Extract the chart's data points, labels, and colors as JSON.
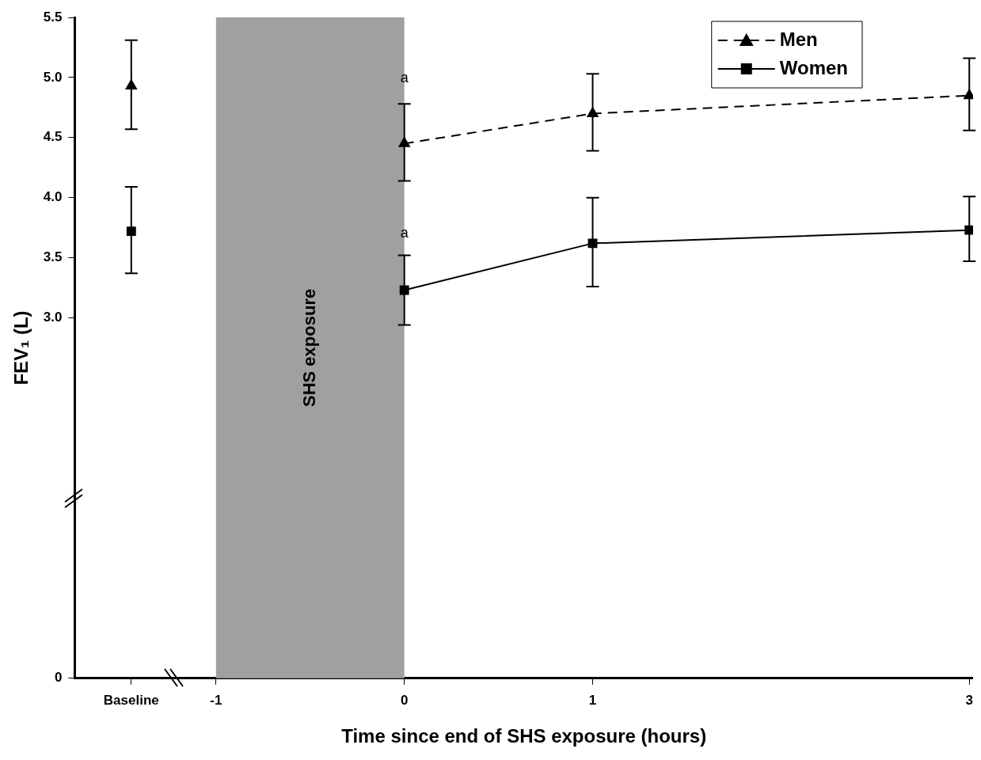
{
  "chart_data": {
    "type": "line",
    "xlabel": "Time since end of SHS exposure (hours)",
    "ylabel": "FEV₁ (L)",
    "xlim": [
      -1.75,
      3.02
    ],
    "xticks": [
      {
        "value": -1.45,
        "label": "Baseline"
      },
      -1,
      0,
      1,
      3
    ],
    "ylim": [
      0,
      5.5
    ],
    "yticks": [
      0,
      {
        "value": 3,
        "label": "3.0"
      },
      {
        "value": 3.5,
        "label": "3.5"
      },
      {
        "value": 4,
        "label": "4.0"
      },
      {
        "value": 4.5,
        "label": "4.5"
      },
      {
        "value": 5,
        "label": "5.0"
      },
      {
        "value": 5.5,
        "label": "5.5"
      }
    ],
    "grid": false,
    "legend": "top right",
    "bands": [
      {
        "axis": "x",
        "from": -1,
        "to": 0,
        "label": "SHS exposure",
        "color": "#a0a0a0"
      }
    ],
    "annotations": [
      {
        "text": "a",
        "x": 0,
        "y": 4.99
      },
      {
        "text": "a",
        "x": 0,
        "y": 3.7
      }
    ],
    "series": [
      {
        "name": "Men",
        "type": "line",
        "color": "#000000",
        "marker": "triangle",
        "line_style": "dashed",
        "x": [
          0,
          1,
          3
        ],
        "values": [
          4.45,
          4.7,
          4.85
        ],
        "errors": [
          [
            4.14,
            4.78
          ],
          [
            4.39,
            5.03
          ],
          [
            4.56,
            5.16
          ]
        ]
      },
      {
        "type": "scatter",
        "color": "#000000",
        "marker": "triangle",
        "x": [
          -1.45
        ],
        "values": [
          4.93
        ],
        "errors": [
          [
            4.57,
            5.31
          ]
        ]
      },
      {
        "name": "Women",
        "type": "line",
        "color": "#000000",
        "marker": "square",
        "line_style": "solid",
        "x": [
          0,
          1,
          3
        ],
        "values": [
          3.23,
          3.62,
          3.73
        ],
        "errors": [
          [
            2.94,
            3.52
          ],
          [
            3.26,
            4.0
          ],
          [
            3.47,
            4.01
          ]
        ]
      },
      {
        "type": "scatter",
        "color": "#000000",
        "marker": "square",
        "x": [
          -1.45
        ],
        "values": [
          3.72
        ],
        "errors": [
          [
            3.37,
            4.09
          ]
        ]
      }
    ]
  }
}
